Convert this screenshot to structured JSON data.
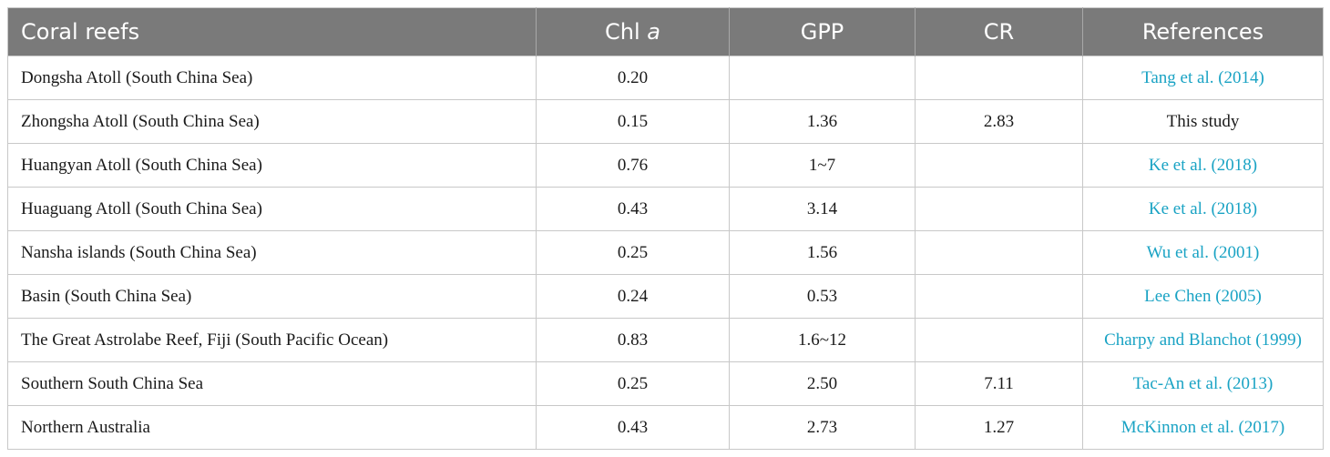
{
  "table": {
    "headers": {
      "coral_reefs": "Coral reefs",
      "chl_prefix": "Chl ",
      "chl_italic": "a",
      "gpp": "GPP",
      "cr": "CR",
      "references": "References"
    },
    "rows": [
      {
        "reef": "Dongsha Atoll (South China Sea)",
        "chl": "0.20",
        "gpp": "",
        "cr": "",
        "ref": "Tang et al. (2014)",
        "ref_is_link": true
      },
      {
        "reef": "Zhongsha Atoll (South China Sea)",
        "chl": "0.15",
        "gpp": "1.36",
        "cr": "2.83",
        "ref": "This study",
        "ref_is_link": false
      },
      {
        "reef": "Huangyan Atoll (South China Sea)",
        "chl": "0.76",
        "gpp": "1~7",
        "cr": "",
        "ref": "Ke et al. (2018)",
        "ref_is_link": true
      },
      {
        "reef": "Huaguang Atoll (South China Sea)",
        "chl": "0.43",
        "gpp": "3.14",
        "cr": "",
        "ref": "Ke et al. (2018)",
        "ref_is_link": true
      },
      {
        "reef": "Nansha islands (South China Sea)",
        "chl": "0.25",
        "gpp": "1.56",
        "cr": "",
        "ref": "Wu et al. (2001)",
        "ref_is_link": true
      },
      {
        "reef": "Basin (South China Sea)",
        "chl": "0.24",
        "gpp": "0.53",
        "cr": "",
        "ref": "Lee Chen (2005)",
        "ref_is_link": true
      },
      {
        "reef": "The Great Astrolabe Reef, Fiji (South Pacific Ocean)",
        "chl": "0.83",
        "gpp": "1.6~12",
        "cr": "",
        "ref": "Charpy and Blanchot (1999)",
        "ref_is_link": true
      },
      {
        "reef": "Southern South China Sea",
        "chl": "0.25",
        "gpp": "2.50",
        "cr": "7.11",
        "ref": "Tac-An et al. (2013)",
        "ref_is_link": true
      },
      {
        "reef": "Northern Australia",
        "chl": "0.43",
        "gpp": "2.73",
        "cr": "1.27",
        "ref": "McKinnon et al. (2017)",
        "ref_is_link": true
      }
    ]
  },
  "colors": {
    "header_bg": "#7a7a7a",
    "header_text": "#ffffff",
    "link": "#1aa3c4",
    "border": "#c8c8c8"
  }
}
